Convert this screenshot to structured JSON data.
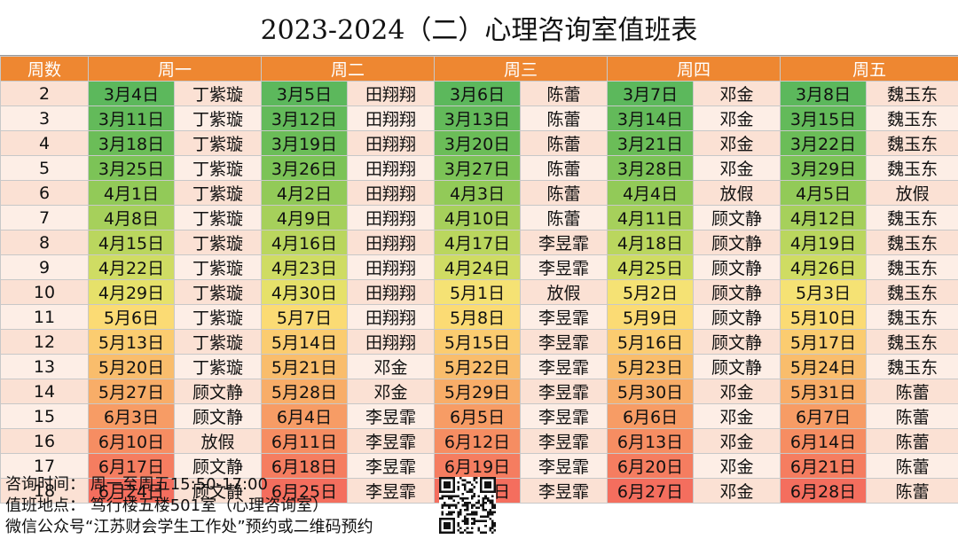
{
  "title": "2023-2024（二）心理咨询室值班表",
  "headers": [
    "周数",
    "周一",
    "周二",
    "周三",
    "周四",
    "周五"
  ],
  "rows": [
    {
      "week": "2",
      "cells": [
        [
          "3月4日",
          "丁紫璇",
          "#5cb85c"
        ],
        [
          "3月5日",
          "田翔翔",
          "#5cb85c"
        ],
        [
          "3月6日",
          "陈蕾",
          "#5cb85c"
        ],
        [
          "3月7日",
          "邓金",
          "#5cb85c"
        ],
        [
          "3月8日",
          "魏玉东",
          "#5cb85c"
        ]
      ]
    },
    {
      "week": "3",
      "cells": [
        [
          "3月11日",
          "丁紫璇",
          "#63ba5a"
        ],
        [
          "3月12日",
          "田翔翔",
          "#63ba5a"
        ],
        [
          "3月13日",
          "陈蕾",
          "#63ba5a"
        ],
        [
          "3月14日",
          "邓金",
          "#63ba5a"
        ],
        [
          "3月15日",
          "魏玉东",
          "#63ba5a"
        ]
      ]
    },
    {
      "week": "4",
      "cells": [
        [
          "3月18日",
          "丁紫璇",
          "#6bbd58"
        ],
        [
          "3月19日",
          "田翔翔",
          "#6bbd58"
        ],
        [
          "3月20日",
          "陈蕾",
          "#6bbd58"
        ],
        [
          "3月21日",
          "邓金",
          "#6bbd58"
        ],
        [
          "3月22日",
          "魏玉东",
          "#6bbd58"
        ]
      ]
    },
    {
      "week": "5",
      "cells": [
        [
          "3月25日",
          "丁紫璇",
          "#7cc357"
        ],
        [
          "3月26日",
          "田翔翔",
          "#7cc357"
        ],
        [
          "3月27日",
          "陈蕾",
          "#7cc357"
        ],
        [
          "3月28日",
          "邓金",
          "#7cc357"
        ],
        [
          "3月29日",
          "魏玉东",
          "#7cc357"
        ]
      ]
    },
    {
      "week": "6",
      "cells": [
        [
          "4月1日",
          "丁紫璇",
          "#92ca58"
        ],
        [
          "4月2日",
          "田翔翔",
          "#92ca58"
        ],
        [
          "4月3日",
          "陈蕾",
          "#92ca58"
        ],
        [
          "4月4日",
          "放假",
          "#92ca58"
        ],
        [
          "4月5日",
          "放假",
          "#92ca58"
        ]
      ]
    },
    {
      "week": "7",
      "cells": [
        [
          "4月8日",
          "丁紫璇",
          "#a6d05b"
        ],
        [
          "4月9日",
          "田翔翔",
          "#a6d05b"
        ],
        [
          "4月10日",
          "陈蕾",
          "#a6d05b"
        ],
        [
          "4月11日",
          "顾文静",
          "#a6d05b"
        ],
        [
          "4月12日",
          "魏玉东",
          "#a6d05b"
        ]
      ]
    },
    {
      "week": "8",
      "cells": [
        [
          "4月15日",
          "丁紫璇",
          "#bad65e"
        ],
        [
          "4月16日",
          "田翔翔",
          "#bad65e"
        ],
        [
          "4月17日",
          "李昱霏",
          "#bad65e"
        ],
        [
          "4月18日",
          "顾文静",
          "#bad65e"
        ],
        [
          "4月19日",
          "魏玉东",
          "#bad65e"
        ]
      ]
    },
    {
      "week": "9",
      "cells": [
        [
          "4月22日",
          "丁紫璇",
          "#cfdc63"
        ],
        [
          "4月23日",
          "田翔翔",
          "#cfdc63"
        ],
        [
          "4月24日",
          "李昱霏",
          "#cfdc63"
        ],
        [
          "4月25日",
          "顾文静",
          "#cfdc63"
        ],
        [
          "4月26日",
          "魏玉东",
          "#cfdc63"
        ]
      ]
    },
    {
      "week": "10",
      "cells": [
        [
          "4月29日",
          "丁紫璇",
          "#e6e16a"
        ],
        [
          "4月30日",
          "田翔翔",
          "#e6e16a"
        ],
        [
          "5月1日",
          "放假",
          "#f5e274"
        ],
        [
          "5月2日",
          "顾文静",
          "#f5e274"
        ],
        [
          "5月3日",
          "魏玉东",
          "#f5e274"
        ]
      ]
    },
    {
      "week": "11",
      "cells": [
        [
          "5月6日",
          "丁紫璇",
          "#fbdb74"
        ],
        [
          "5月7日",
          "田翔翔",
          "#fbdb74"
        ],
        [
          "5月8日",
          "李昱霏",
          "#fbdb74"
        ],
        [
          "5月9日",
          "顾文静",
          "#fbdb74"
        ],
        [
          "5月10日",
          "魏玉东",
          "#fbdb74"
        ]
      ]
    },
    {
      "week": "12",
      "cells": [
        [
          "5月13日",
          "丁紫璇",
          "#fbcc70"
        ],
        [
          "5月14日",
          "田翔翔",
          "#fbcc70"
        ],
        [
          "5月15日",
          "李昱霏",
          "#fbcc70"
        ],
        [
          "5月16日",
          "顾文静",
          "#fbcc70"
        ],
        [
          "5月17日",
          "魏玉东",
          "#fbcc70"
        ]
      ]
    },
    {
      "week": "13",
      "cells": [
        [
          "5月20日",
          "丁紫璇",
          "#f9bd6c"
        ],
        [
          "5月21日",
          "邓金",
          "#f9bd6c"
        ],
        [
          "5月22日",
          "李昱霏",
          "#f9bd6c"
        ],
        [
          "5月23日",
          "顾文静",
          "#f9bd6c"
        ],
        [
          "5月24日",
          "魏玉东",
          "#f9bd6c"
        ]
      ]
    },
    {
      "week": "14",
      "cells": [
        [
          "5月27日",
          "顾文静",
          "#f8ad68"
        ],
        [
          "5月28日",
          "邓金",
          "#f8ad68"
        ],
        [
          "5月29日",
          "李昱霏",
          "#f8ad68"
        ],
        [
          "5月30日",
          "邓金",
          "#f8ad68"
        ],
        [
          "5月31日",
          "陈蕾",
          "#f8ad68"
        ]
      ]
    },
    {
      "week": "15",
      "cells": [
        [
          "6月3日",
          "顾文静",
          "#f79c65"
        ],
        [
          "6月4日",
          "李昱霏",
          "#f79c65"
        ],
        [
          "6月5日",
          "李昱霏",
          "#f79c65"
        ],
        [
          "6月6日",
          "邓金",
          "#f79c65"
        ],
        [
          "6月7日",
          "陈蕾",
          "#f79c65"
        ]
      ]
    },
    {
      "week": "16",
      "cells": [
        [
          "6月10日",
          "放假",
          "#f68d62"
        ],
        [
          "6月11日",
          "李昱霏",
          "#f68d62"
        ],
        [
          "6月12日",
          "李昱霏",
          "#f68d62"
        ],
        [
          "6月13日",
          "邓金",
          "#f68d62"
        ],
        [
          "6月14日",
          "陈蕾",
          "#f68d62"
        ]
      ]
    },
    {
      "week": "17",
      "cells": [
        [
          "6月17日",
          "顾文静",
          "#f57d60"
        ],
        [
          "6月18日",
          "李昱霏",
          "#f57d60"
        ],
        [
          "6月19日",
          "李昱霏",
          "#f57d60"
        ],
        [
          "6月20日",
          "邓金",
          "#f57d60"
        ],
        [
          "6月21日",
          "陈蕾",
          "#f57d60"
        ]
      ]
    },
    {
      "week": "18",
      "cells": [
        [
          "6月24日",
          "顾文静",
          "#f46e5e"
        ],
        [
          "6月25日",
          "李昱霏",
          "#f46e5e"
        ],
        [
          "6月26日",
          "李昱霏",
          "#f46e5e"
        ],
        [
          "6月27日",
          "邓金",
          "#f46e5e"
        ],
        [
          "6月28日",
          "陈蕾",
          "#f46e5e"
        ]
      ]
    }
  ],
  "footer": {
    "time": "咨询时间：  周一至周五15:50-17:00",
    "place": "值班地点：  笃行楼五楼501室（心理咨询室）",
    "booking": "微信公众号“江苏财会学生工作处”预约或二维码预约"
  },
  "colors": {
    "header": "#ee8731",
    "name_bg": "#fbe1d4",
    "name_bg_alt": "#fdeee6"
  },
  "qr_icon": "qr-code-icon"
}
